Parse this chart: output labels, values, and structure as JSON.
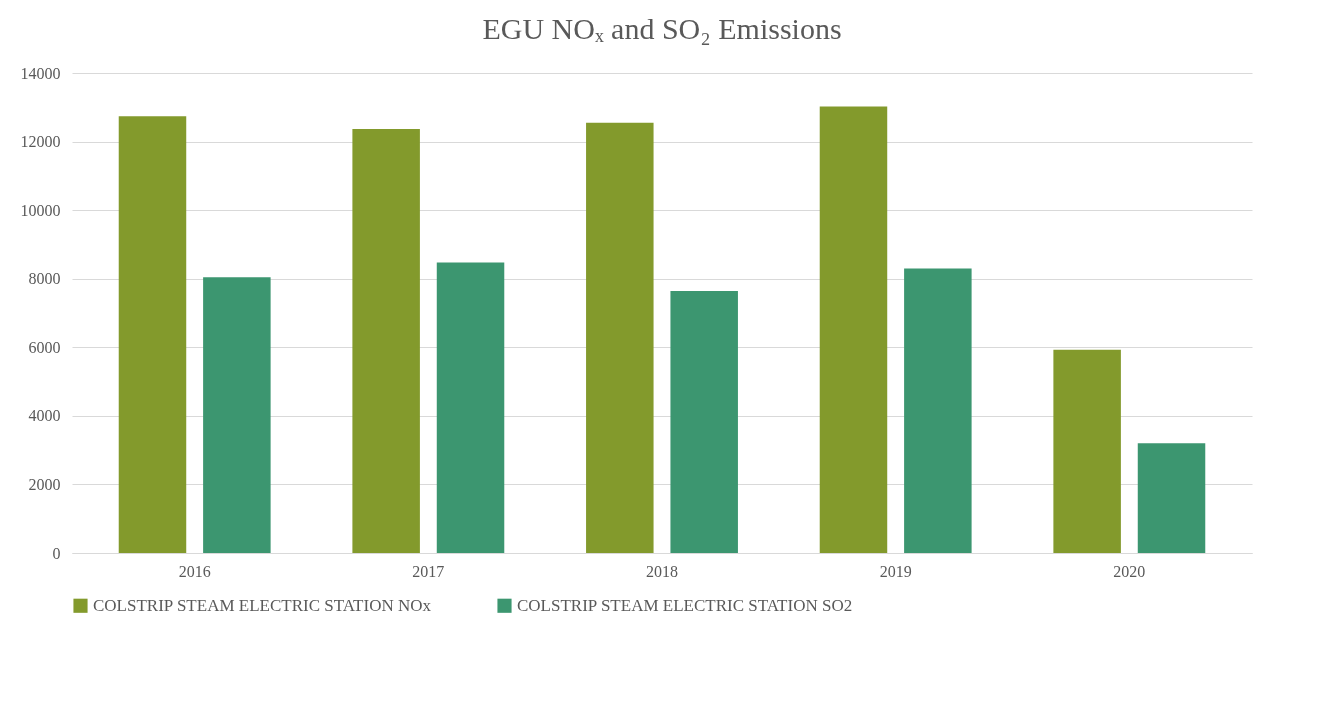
{
  "chart_data": {
    "type": "bar",
    "title": "EGU NOₓ and SO₂ Emissions",
    "categories": [
      "2016",
      "2017",
      "2018",
      "2019",
      "2020"
    ],
    "series": [
      {
        "name": "COLSTRIP STEAM ELECTRIC STATION  NOx",
        "color": "#839a2c",
        "values": [
          12740,
          12370,
          12550,
          13020,
          5930
        ]
      },
      {
        "name": "COLSTRIP STEAM ELECTRIC STATION  SO2",
        "color": "#3c9670",
        "values": [
          8040,
          8470,
          7640,
          8300,
          3200
        ]
      }
    ],
    "ylim": [
      0,
      14000
    ],
    "yticks": [
      0,
      2000,
      4000,
      6000,
      8000,
      10000,
      12000,
      14000
    ],
    "grid": "y",
    "legend": "bottom"
  }
}
